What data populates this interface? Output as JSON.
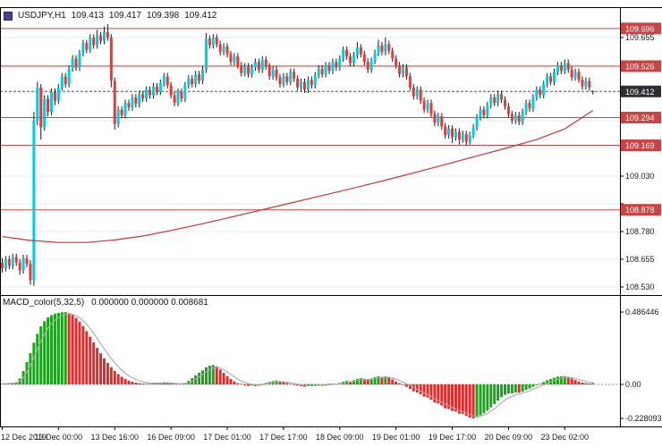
{
  "header": {
    "symbol": "USDJPY,H1",
    "open": "109.413",
    "high": "109.417",
    "low": "109.398",
    "close": "109.412"
  },
  "macd": {
    "title": "MACD_color(5,32,5)",
    "values": "0.000000 0.000000 0.008681"
  },
  "colors": {
    "candle_up": "#00cdde",
    "candle_down": "#f03535",
    "wick": "#1a1a1a",
    "ma_line": "#cc3333",
    "level_line": "#cc4444",
    "badge": "#c94444",
    "current_badge": "#2f2f2f",
    "macd_up": "#1ca31c",
    "macd_down": "#e32a2a",
    "signal_line": "#aaaaaa",
    "grid": "#ebebeb",
    "zero_line": "#9a9a9a",
    "current_line": "#555555",
    "axis_text": "#1a1a1a"
  },
  "chart_data": {
    "type": "candlestick",
    "title": "USDJPY,H1",
    "grid": true,
    "ylim": [
      108.494,
      109.792
    ],
    "price_ticks": [
      109.655,
      109.53,
      109.405,
      109.28,
      109.155,
      109.03,
      108.905,
      108.78,
      108.655,
      108.53
    ],
    "levels": [
      109.696,
      109.526,
      109.294,
      109.169,
      108.878
    ],
    "current_price": 109.412,
    "time_labels": [
      {
        "bar": 0,
        "text": "12 Dec 2019"
      },
      {
        "bar": 16,
        "text": "13 Dec 00:00"
      },
      {
        "bar": 32,
        "text": "13 Dec 16:00"
      },
      {
        "bar": 48,
        "text": "16 Dec 09:00"
      },
      {
        "bar": 64,
        "text": "17 Dec 01:00"
      },
      {
        "bar": 80,
        "text": "17 Dec 17:00"
      },
      {
        "bar": 96,
        "text": "18 Dec 09:00"
      },
      {
        "bar": 112,
        "text": "19 Dec 01:00"
      },
      {
        "bar": 128,
        "text": "19 Dec 17:00"
      },
      {
        "bar": 144,
        "text": "20 Dec 09:00"
      },
      {
        "bar": 160,
        "text": "23 Dec 02:00"
      }
    ],
    "ma_line": {
      "name": "moving-average",
      "points": [
        [
          0,
          108.757
        ],
        [
          8,
          108.74
        ],
        [
          16,
          108.731
        ],
        [
          24,
          108.731
        ],
        [
          32,
          108.742
        ],
        [
          40,
          108.76
        ],
        [
          48,
          108.785
        ],
        [
          56,
          108.812
        ],
        [
          64,
          108.841
        ],
        [
          72,
          108.871
        ],
        [
          80,
          108.901
        ],
        [
          88,
          108.931
        ],
        [
          96,
          108.961
        ],
        [
          104,
          108.992
        ],
        [
          112,
          109.024
        ],
        [
          120,
          109.057
        ],
        [
          128,
          109.091
        ],
        [
          136,
          109.125
        ],
        [
          144,
          109.159
        ],
        [
          152,
          109.195
        ],
        [
          160,
          109.243
        ],
        [
          168,
          109.326
        ]
      ]
    },
    "candles": [
      [
        108.64,
        108.66,
        108.595,
        108.615
      ],
      [
        108.615,
        108.67,
        108.6,
        108.655
      ],
      [
        108.655,
        108.67,
        108.61,
        108.625
      ],
      [
        108.625,
        108.68,
        108.61,
        108.665
      ],
      [
        108.665,
        108.68,
        108.625,
        108.64
      ],
      [
        108.64,
        108.655,
        108.585,
        108.605
      ],
      [
        108.605,
        108.675,
        108.59,
        108.66
      ],
      [
        108.66,
        108.675,
        108.62,
        108.635
      ],
      [
        108.635,
        108.65,
        108.54,
        108.56
      ],
      [
        108.56,
        109.32,
        108.535,
        109.28
      ],
      [
        109.28,
        109.455,
        109.26,
        109.43
      ],
      [
        109.43,
        109.445,
        109.195,
        109.25
      ],
      [
        109.25,
        109.395,
        109.235,
        109.38
      ],
      [
        109.38,
        109.395,
        109.3,
        109.32
      ],
      [
        109.32,
        109.425,
        109.305,
        109.41
      ],
      [
        109.41,
        109.425,
        109.35,
        109.37
      ],
      [
        109.37,
        109.445,
        109.355,
        109.43
      ],
      [
        109.43,
        109.495,
        109.415,
        109.48
      ],
      [
        109.48,
        109.495,
        109.43,
        109.445
      ],
      [
        109.445,
        109.53,
        109.43,
        109.515
      ],
      [
        109.515,
        109.575,
        109.5,
        109.56
      ],
      [
        109.56,
        109.575,
        109.505,
        109.52
      ],
      [
        109.52,
        109.6,
        109.505,
        109.585
      ],
      [
        109.585,
        109.645,
        109.57,
        109.63
      ],
      [
        109.63,
        109.645,
        109.585,
        109.6
      ],
      [
        109.6,
        109.67,
        109.585,
        109.655
      ],
      [
        109.655,
        109.67,
        109.605,
        109.62
      ],
      [
        109.62,
        109.69,
        109.605,
        109.665
      ],
      [
        109.665,
        109.68,
        109.625,
        109.64
      ],
      [
        109.64,
        109.705,
        109.625,
        109.68
      ],
      [
        109.68,
        109.715,
        109.64,
        109.655
      ],
      [
        109.655,
        109.67,
        109.43,
        109.46
      ],
      [
        109.46,
        109.475,
        109.24,
        109.265
      ],
      [
        109.265,
        109.345,
        109.25,
        109.33
      ],
      [
        109.33,
        109.345,
        109.29,
        109.305
      ],
      [
        109.305,
        109.375,
        109.29,
        109.36
      ],
      [
        109.36,
        109.375,
        109.325,
        109.34
      ],
      [
        109.34,
        109.4,
        109.325,
        109.385
      ],
      [
        109.385,
        109.4,
        109.34,
        109.355
      ],
      [
        109.355,
        109.415,
        109.34,
        109.4
      ],
      [
        109.4,
        109.415,
        109.365,
        109.38
      ],
      [
        109.38,
        109.435,
        109.365,
        109.42
      ],
      [
        109.42,
        109.435,
        109.38,
        109.395
      ],
      [
        109.395,
        109.45,
        109.38,
        109.435
      ],
      [
        109.435,
        109.45,
        109.395,
        109.41
      ],
      [
        109.41,
        109.465,
        109.395,
        109.45
      ],
      [
        109.45,
        109.495,
        109.435,
        109.48
      ],
      [
        109.48,
        109.495,
        109.425,
        109.44
      ],
      [
        109.44,
        109.455,
        109.38,
        109.395
      ],
      [
        109.395,
        109.41,
        109.345,
        109.36
      ],
      [
        109.36,
        109.425,
        109.345,
        109.41
      ],
      [
        109.41,
        109.425,
        109.365,
        109.38
      ],
      [
        109.38,
        109.455,
        109.365,
        109.44
      ],
      [
        109.44,
        109.485,
        109.425,
        109.47
      ],
      [
        109.47,
        109.485,
        109.43,
        109.445
      ],
      [
        109.445,
        109.505,
        109.43,
        109.49
      ],
      [
        109.49,
        109.505,
        109.445,
        109.46
      ],
      [
        109.46,
        109.525,
        109.445,
        109.51
      ],
      [
        109.51,
        109.675,
        109.495,
        109.65
      ],
      [
        109.65,
        109.665,
        109.605,
        109.62
      ],
      [
        109.62,
        109.67,
        109.605,
        109.655
      ],
      [
        109.655,
        109.67,
        109.61,
        109.625
      ],
      [
        109.625,
        109.64,
        109.575,
        109.59
      ],
      [
        109.59,
        109.63,
        109.575,
        109.615
      ],
      [
        109.615,
        109.63,
        109.565,
        109.58
      ],
      [
        109.58,
        109.595,
        109.53,
        109.545
      ],
      [
        109.545,
        109.585,
        109.53,
        109.57
      ],
      [
        109.57,
        109.585,
        109.515,
        109.53
      ],
      [
        109.53,
        109.545,
        109.48,
        109.495
      ],
      [
        109.495,
        109.54,
        109.48,
        109.525
      ],
      [
        109.525,
        109.54,
        109.475,
        109.49
      ],
      [
        109.49,
        109.535,
        109.475,
        109.52
      ],
      [
        109.52,
        109.56,
        109.505,
        109.545
      ],
      [
        109.545,
        109.56,
        109.495,
        109.51
      ],
      [
        109.51,
        109.57,
        109.495,
        109.555
      ],
      [
        109.555,
        109.57,
        109.51,
        109.525
      ],
      [
        109.525,
        109.54,
        109.465,
        109.48
      ],
      [
        109.48,
        109.525,
        109.465,
        109.51
      ],
      [
        109.51,
        109.525,
        109.46,
        109.475
      ],
      [
        109.475,
        109.49,
        109.43,
        109.445
      ],
      [
        109.445,
        109.495,
        109.43,
        109.48
      ],
      [
        109.48,
        109.495,
        109.44,
        109.455
      ],
      [
        109.455,
        109.515,
        109.44,
        109.5
      ],
      [
        109.5,
        109.515,
        109.455,
        109.47
      ],
      [
        109.47,
        109.485,
        109.415,
        109.43
      ],
      [
        109.43,
        109.47,
        109.415,
        109.455
      ],
      [
        109.455,
        109.47,
        109.405,
        109.42
      ],
      [
        109.42,
        109.48,
        109.405,
        109.465
      ],
      [
        109.465,
        109.48,
        109.425,
        109.44
      ],
      [
        109.44,
        109.5,
        109.425,
        109.485
      ],
      [
        109.485,
        109.53,
        109.47,
        109.515
      ],
      [
        109.515,
        109.53,
        109.475,
        109.49
      ],
      [
        109.49,
        109.545,
        109.475,
        109.53
      ],
      [
        109.53,
        109.545,
        109.49,
        109.505
      ],
      [
        109.505,
        109.56,
        109.49,
        109.545
      ],
      [
        109.545,
        109.56,
        109.505,
        109.52
      ],
      [
        109.52,
        109.575,
        109.505,
        109.56
      ],
      [
        109.56,
        109.615,
        109.545,
        109.6
      ],
      [
        109.6,
        109.615,
        109.555,
        109.57
      ],
      [
        109.57,
        109.585,
        109.525,
        109.54
      ],
      [
        109.54,
        109.59,
        109.525,
        109.575
      ],
      [
        109.575,
        109.635,
        109.56,
        109.61
      ],
      [
        109.61,
        109.625,
        109.565,
        109.58
      ],
      [
        109.58,
        109.595,
        109.53,
        109.545
      ],
      [
        109.545,
        109.56,
        109.495,
        109.51
      ],
      [
        109.51,
        109.565,
        109.495,
        109.55
      ],
      [
        109.55,
        109.6,
        109.535,
        109.585
      ],
      [
        109.585,
        109.645,
        109.57,
        109.62
      ],
      [
        109.62,
        109.635,
        109.575,
        109.59
      ],
      [
        109.59,
        109.655,
        109.575,
        109.625
      ],
      [
        109.625,
        109.64,
        109.58,
        109.595
      ],
      [
        109.595,
        109.61,
        109.545,
        109.56
      ],
      [
        109.56,
        109.575,
        109.515,
        109.53
      ],
      [
        109.53,
        109.545,
        109.475,
        109.49
      ],
      [
        109.49,
        109.535,
        109.475,
        109.52
      ],
      [
        109.52,
        109.535,
        109.465,
        109.48
      ],
      [
        109.48,
        109.495,
        109.415,
        109.43
      ],
      [
        109.43,
        109.445,
        109.375,
        109.39
      ],
      [
        109.39,
        109.435,
        109.375,
        109.42
      ],
      [
        109.42,
        109.435,
        109.355,
        109.37
      ],
      [
        109.37,
        109.385,
        109.315,
        109.33
      ],
      [
        109.33,
        109.375,
        109.315,
        109.36
      ],
      [
        109.36,
        109.375,
        109.295,
        109.31
      ],
      [
        109.31,
        109.325,
        109.255,
        109.27
      ],
      [
        109.27,
        109.315,
        109.255,
        109.3
      ],
      [
        109.3,
        109.315,
        109.24,
        109.255
      ],
      [
        109.255,
        109.27,
        109.2,
        109.215
      ],
      [
        109.215,
        109.26,
        109.2,
        109.245
      ],
      [
        109.245,
        109.26,
        109.18,
        109.205
      ],
      [
        109.205,
        109.245,
        109.19,
        109.23
      ],
      [
        109.23,
        109.245,
        109.172,
        109.195
      ],
      [
        109.195,
        109.235,
        109.18,
        109.22
      ],
      [
        109.22,
        109.235,
        109.169,
        109.185
      ],
      [
        109.185,
        109.23,
        109.172,
        109.215
      ],
      [
        109.215,
        109.265,
        109.2,
        109.25
      ],
      [
        109.25,
        109.31,
        109.235,
        109.295
      ],
      [
        109.295,
        109.345,
        109.28,
        109.33
      ],
      [
        109.33,
        109.345,
        109.29,
        109.305
      ],
      [
        109.305,
        109.365,
        109.29,
        109.35
      ],
      [
        109.35,
        109.4,
        109.335,
        109.385
      ],
      [
        109.385,
        109.4,
        109.345,
        109.36
      ],
      [
        109.36,
        109.415,
        109.345,
        109.4
      ],
      [
        109.4,
        109.415,
        109.36,
        109.375
      ],
      [
        109.375,
        109.39,
        109.33,
        109.345
      ],
      [
        109.345,
        109.36,
        109.295,
        109.31
      ],
      [
        109.31,
        109.325,
        109.265,
        109.28
      ],
      [
        109.28,
        109.32,
        109.265,
        109.305
      ],
      [
        109.305,
        109.32,
        109.26,
        109.275
      ],
      [
        109.275,
        109.335,
        109.26,
        109.32
      ],
      [
        109.32,
        109.375,
        109.305,
        109.36
      ],
      [
        109.36,
        109.375,
        109.32,
        109.335
      ],
      [
        109.335,
        109.4,
        109.32,
        109.385
      ],
      [
        109.385,
        109.435,
        109.37,
        109.42
      ],
      [
        109.42,
        109.435,
        109.38,
        109.395
      ],
      [
        109.395,
        109.46,
        109.38,
        109.445
      ],
      [
        109.445,
        109.495,
        109.43,
        109.48
      ],
      [
        109.48,
        109.495,
        109.44,
        109.455
      ],
      [
        109.455,
        109.515,
        109.44,
        109.5
      ],
      [
        109.5,
        109.545,
        109.485,
        109.53
      ],
      [
        109.53,
        109.545,
        109.49,
        109.505
      ],
      [
        109.505,
        109.555,
        109.49,
        109.54
      ],
      [
        109.54,
        109.555,
        109.495,
        109.51
      ],
      [
        109.51,
        109.525,
        109.46,
        109.475
      ],
      [
        109.475,
        109.515,
        109.46,
        109.5
      ],
      [
        109.5,
        109.515,
        109.45,
        109.465
      ],
      [
        109.465,
        109.48,
        109.42,
        109.435
      ],
      [
        109.435,
        109.475,
        109.42,
        109.46
      ],
      [
        109.46,
        109.475,
        109.415,
        109.43
      ],
      [
        109.413,
        109.417,
        109.398,
        109.412
      ]
    ],
    "macd": {
      "type": "histogram+line",
      "name": "MACD_color(5,32,5)",
      "axis_max": 0.486446,
      "axis_min": -0.228093,
      "axis_max_label": "0.486446",
      "axis_zero_label": "0.00",
      "axis_min_label": "-0.228093",
      "hist": [
        0.004,
        0.006,
        0.009,
        0.012,
        0.015,
        0.04,
        0.09,
        0.15,
        0.21,
        0.28,
        0.34,
        0.39,
        0.425,
        0.45,
        0.465,
        0.475,
        0.481,
        0.485,
        0.486,
        0.479,
        0.466,
        0.447,
        0.422,
        0.392,
        0.358,
        0.32,
        0.282,
        0.245,
        0.209,
        0.175,
        0.144,
        0.116,
        0.091,
        0.069,
        0.051,
        0.037,
        0.026,
        0.018,
        0.012,
        0.008,
        0.005,
        0.003,
        0.004,
        0.006,
        0.008,
        0.011,
        0.014,
        0.012,
        0.007,
        0.002,
        0.003,
        0.002,
        0.01,
        0.024,
        0.042,
        0.06,
        0.078,
        0.094,
        0.115,
        0.126,
        0.13,
        0.121,
        0.1,
        0.078,
        0.056,
        0.036,
        0.02,
        0.008,
        0.0,
        -0.006,
        -0.01,
        -0.008,
        -0.012,
        -0.009,
        0.004,
        0.01,
        0.016,
        0.022,
        0.026,
        0.022,
        0.016,
        0.01,
        0.004,
        -0.002,
        -0.008,
        -0.012,
        -0.016,
        -0.012,
        -0.01,
        -0.006,
        -0.002,
        -0.008,
        -0.004,
        0.002,
        0.006,
        0.004,
        0.01,
        0.018,
        0.024,
        0.02,
        0.028,
        0.036,
        0.042,
        0.038,
        0.03,
        0.04,
        0.048,
        0.055,
        0.05,
        0.054,
        0.046,
        0.034,
        0.02,
        0.008,
        -0.004,
        -0.016,
        -0.03,
        -0.046,
        -0.054,
        -0.066,
        -0.082,
        -0.088,
        -0.102,
        -0.122,
        -0.128,
        -0.142,
        -0.16,
        -0.165,
        -0.178,
        -0.182,
        -0.196,
        -0.198,
        -0.21,
        -0.222,
        -0.228,
        -0.221,
        -0.207,
        -0.194,
        -0.176,
        -0.154,
        -0.132,
        -0.108,
        -0.086,
        -0.07,
        -0.062,
        -0.06,
        -0.054,
        -0.056,
        -0.048,
        -0.036,
        -0.028,
        -0.016,
        -0.005,
        0.004,
        0.016,
        0.028,
        0.036,
        0.044,
        0.052,
        0.054,
        0.056,
        0.05,
        0.04,
        0.03,
        0.02,
        0.012,
        0.008,
        0.006,
        0.0087
      ]
    }
  }
}
